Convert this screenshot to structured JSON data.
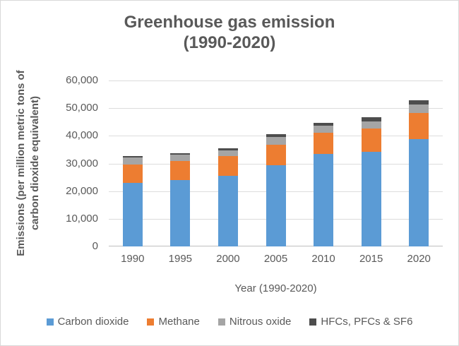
{
  "ui": {
    "background_color": "#FFFFFF",
    "border_color": "#D9D9D9",
    "text_color": "#595959",
    "gridline_color": "#DCDCDC",
    "axis_line_color": "#BFBFBF"
  },
  "chart_data": {
    "type": "bar",
    "stacked": true,
    "title_lines": [
      "Greenhouse gas emission",
      "(1990-2020)"
    ],
    "categories": [
      "1990",
      "1995",
      "2000",
      "2005",
      "2010",
      "2015",
      "2020"
    ],
    "series": [
      {
        "name": "Carbon dioxide",
        "color": "#5B9BD5",
        "values": [
          22900,
          23900,
          25600,
          29400,
          33400,
          34200,
          38900
        ]
      },
      {
        "name": "Methane",
        "color": "#ED7D31",
        "values": [
          6800,
          7000,
          7000,
          7400,
          7700,
          8400,
          9300
        ]
      },
      {
        "name": "Nitrous oxide",
        "color": "#A5A5A5",
        "values": [
          2400,
          2300,
          2100,
          2900,
          2500,
          2700,
          3100
        ]
      },
      {
        "name": "HFCs, PFCs & SF6",
        "color": "#4D4D4D",
        "values": [
          600,
          600,
          800,
          900,
          1100,
          1400,
          1600
        ]
      }
    ],
    "totals": [
      32700,
      33800,
      35500,
      40600,
      44700,
      46700,
      52900
    ],
    "xlabel": "Year (1990-2020)",
    "ylabel_lines": [
      "Emissions (per million metric tons of",
      "carbon dioxide equivalent)"
    ],
    "ylim": [
      0,
      60000
    ],
    "y_tick_step": 10000,
    "y_ticks": [
      "0",
      "10,000",
      "20,000",
      "30,000",
      "40,000",
      "50,000",
      "60,000"
    ],
    "grid": true,
    "legend_position": "bottom"
  }
}
